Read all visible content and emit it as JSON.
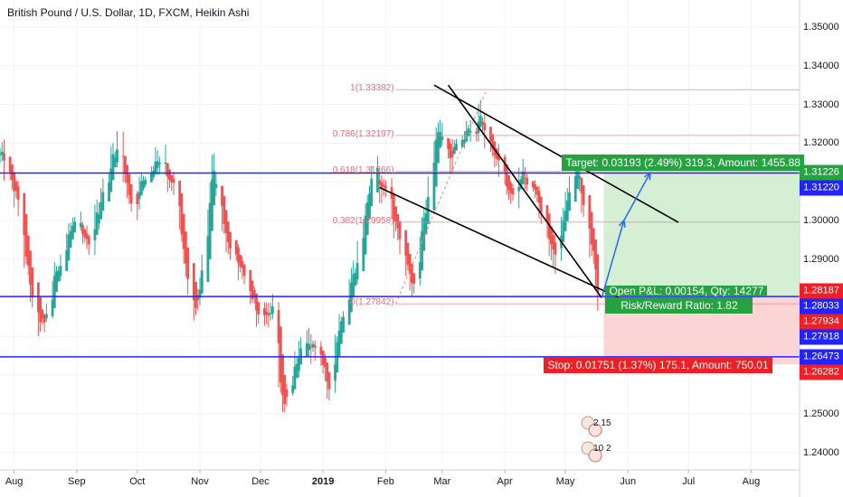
{
  "title": "British Pound / U.S. Dollar, 1D, FXCM, Heikin Ashi",
  "colors": {
    "up": "#26a69a",
    "down": "#ef5350",
    "level_line": "#2323ff",
    "fib_line": "#f08080",
    "profit_zone": "#d4efd4",
    "loss_zone": "#fbd5d5",
    "target_box": "#26a241",
    "stop_box": "#ee1f25",
    "grid": "#f0f3fa"
  },
  "chart_data": {
    "type": "candlestick",
    "style": "Heikin Ashi",
    "symbol": "British Pound / U.S. Dollar",
    "timeframe": "1D",
    "source": "FXCM",
    "y_range": [
      1.2355,
      1.357
    ],
    "x_range": [
      "2018-07-25",
      "2019-08-25"
    ],
    "y_ticks": [
      "1.35000",
      "1.34000",
      "1.33000",
      "1.32000",
      "1.31000",
      "1.30000",
      "1.29000",
      "1.28000",
      "1.27000",
      "1.26000",
      "1.25000",
      "1.24000"
    ],
    "x_ticks": [
      {
        "date": "2018-08-01",
        "label": "Aug"
      },
      {
        "date": "2018-09-01",
        "label": "Sep"
      },
      {
        "date": "2018-10-01",
        "label": "Oct"
      },
      {
        "date": "2018-11-01",
        "label": "Nov"
      },
      {
        "date": "2018-12-01",
        "label": "Dec"
      },
      {
        "date": "2019-01-01",
        "label": "2019"
      },
      {
        "date": "2019-02-01",
        "label": "Feb"
      },
      {
        "date": "2019-03-01",
        "label": "Mar"
      },
      {
        "date": "2019-04-01",
        "label": "Apr"
      },
      {
        "date": "2019-05-01",
        "label": "May"
      },
      {
        "date": "2019-06-01",
        "label": "Jun"
      },
      {
        "date": "2019-07-01",
        "label": "Jul"
      },
      {
        "date": "2019-08-01",
        "label": "Aug"
      }
    ],
    "price_path": [
      [
        "2018-07-25",
        1.317
      ],
      [
        "2018-08-02",
        1.306
      ],
      [
        "2018-08-10",
        1.278
      ],
      [
        "2018-08-15",
        1.272
      ],
      [
        "2018-08-22",
        1.288
      ],
      [
        "2018-08-30",
        1.299
      ],
      [
        "2018-09-06",
        1.293
      ],
      [
        "2018-09-14",
        1.308
      ],
      [
        "2018-09-21",
        1.32
      ],
      [
        "2018-09-28",
        1.304
      ],
      [
        "2018-10-05",
        1.312
      ],
      [
        "2018-10-12",
        1.317
      ],
      [
        "2018-10-19",
        1.308
      ],
      [
        "2018-10-26",
        1.283
      ],
      [
        "2018-10-30",
        1.275
      ],
      [
        "2018-11-07",
        1.312
      ],
      [
        "2018-11-15",
        1.293
      ],
      [
        "2018-11-23",
        1.285
      ],
      [
        "2018-11-30",
        1.276
      ],
      [
        "2018-12-07",
        1.276
      ],
      [
        "2018-12-12",
        1.25
      ],
      [
        "2018-12-19",
        1.265
      ],
      [
        "2018-12-28",
        1.269
      ],
      [
        "2019-01-03",
        1.257
      ],
      [
        "2019-01-10",
        1.276
      ],
      [
        "2019-01-17",
        1.288
      ],
      [
        "2019-01-25",
        1.312
      ],
      [
        "2019-02-01",
        1.308
      ],
      [
        "2019-02-08",
        1.295
      ],
      [
        "2019-02-14",
        1.282
      ],
      [
        "2019-02-21",
        1.305
      ],
      [
        "2019-02-26",
        1.324
      ],
      [
        "2019-03-05",
        1.316
      ],
      [
        "2019-03-12",
        1.322
      ],
      [
        "2019-03-19",
        1.326
      ],
      [
        "2019-03-27",
        1.317
      ],
      [
        "2019-04-03",
        1.306
      ],
      [
        "2019-04-10",
        1.311
      ],
      [
        "2019-04-17",
        1.306
      ],
      [
        "2019-04-25",
        1.291
      ],
      [
        "2019-04-30",
        1.301
      ],
      [
        "2019-05-06",
        1.315
      ],
      [
        "2019-05-10",
        1.302
      ],
      [
        "2019-05-14",
        1.293
      ],
      [
        "2019-05-17",
        1.28
      ]
    ],
    "horizontal_levels": [
      1.31226,
      1.28033,
      1.26473
    ],
    "fibonacci_retracement": {
      "from": 1.27842,
      "to": 1.33382,
      "levels": [
        {
          "ratio": "1",
          "price": "1.33382",
          "label": "1(1.33382)"
        },
        {
          "ratio": "0.786",
          "price": "1.32197",
          "label": "0.786(1.32197)"
        },
        {
          "ratio": "0.618",
          "price": "1.31266",
          "label": "0.618(1.31266)"
        },
        {
          "ratio": "0.382",
          "price": "1.29958",
          "label": "0.382(1.29958)"
        },
        {
          "ratio": "0",
          "price": "1.27842",
          "label": "0(1.27842)"
        }
      ]
    },
    "trend_lines": [
      {
        "from": [
          "2019-02-25",
          1.335
        ],
        "to": [
          "2019-06-26",
          1.2995
        ]
      },
      {
        "from": [
          "2019-03-04",
          1.335
        ],
        "to": [
          "2019-05-19",
          1.28
        ]
      },
      {
        "from": [
          "2019-01-29",
          1.3085
        ],
        "to": [
          "2019-06-05",
          1.278
        ]
      }
    ],
    "projection_arrows": [
      {
        "from": [
          "2019-05-19",
          1.28
        ],
        "to": [
          "2019-05-30",
          1.3
        ]
      },
      {
        "from": [
          "2019-05-30",
          1.3
        ],
        "to": [
          "2019-06-12",
          1.3123
        ]
      }
    ],
    "position": {
      "side": "long",
      "entry": 1.28033,
      "target": 1.31226,
      "stop": 1.26282,
      "start": "2019-05-20",
      "end": "2019-08-25",
      "target_label": "Target: 0.03193 (2.49%) 319.3, Amount: 1455.88",
      "stop_label": "Stop: 0.01751 (1.37%) 175.1, Amount: 750.01",
      "open_pl_label": "Open P&L: 0.00154, Qty: 14277",
      "risk_reward_label": "Risk/Reward Ratio: 1.82"
    },
    "price_tags": [
      {
        "value": "1.31226",
        "color": "#26a241"
      },
      {
        "value": "1.31220",
        "color": "#2323ff"
      },
      {
        "value": "1.28187",
        "color": "#ee1f25"
      },
      {
        "value": "1.28033",
        "color": "#2323ff"
      },
      {
        "value": "1.27934",
        "color": "#ee1f25"
      },
      {
        "value": "1.27918",
        "color": "#2323ff"
      },
      {
        "value": "1.26473",
        "color": "#2323ff"
      },
      {
        "value": "1.26282",
        "color": "#ee1f25"
      }
    ],
    "event_badges": [
      {
        "date": "2019-05-14",
        "text": "2 15"
      },
      {
        "date": "2019-05-14",
        "text": "10 2"
      }
    ]
  }
}
